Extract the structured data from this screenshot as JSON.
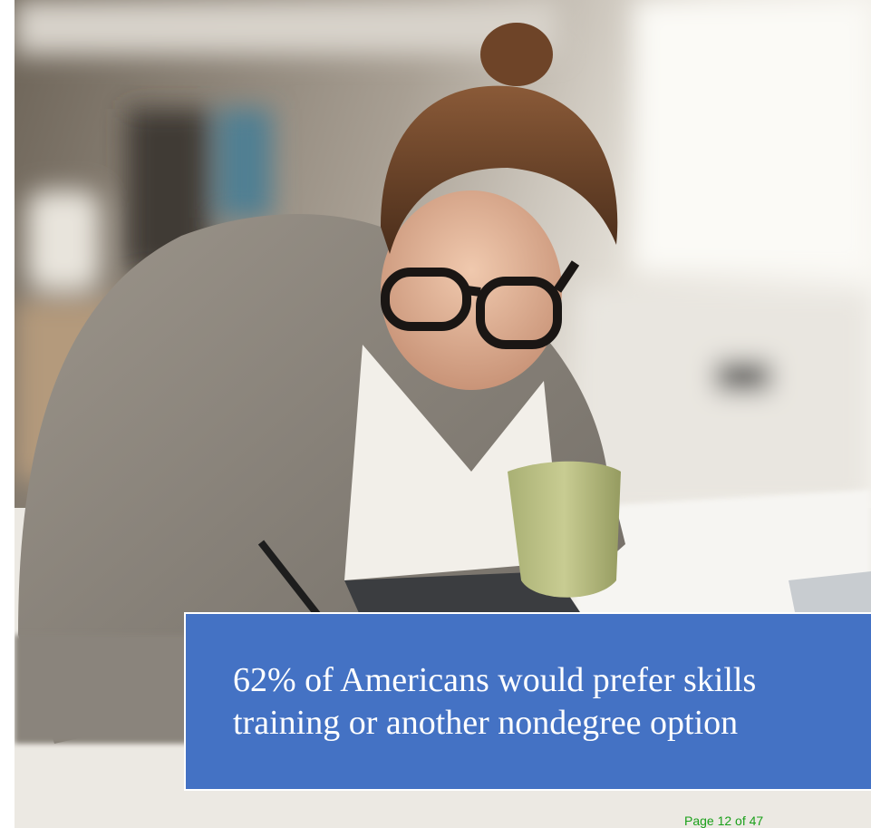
{
  "slide": {
    "caption_lines": [
      "62% of Americans would prefer skills",
      "training or another nondegree option"
    ],
    "page_label": "Page 12 of 47"
  }
}
